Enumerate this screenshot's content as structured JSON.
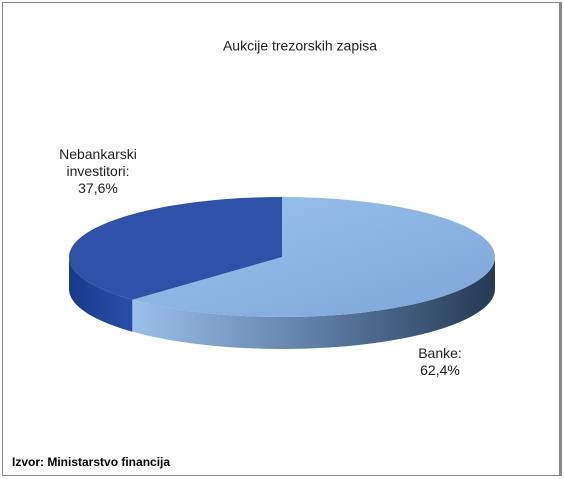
{
  "chart_data": {
    "type": "pie3d",
    "title": "Aukcije trezorskih zapisa",
    "categories": [
      "Banke:",
      "Nebankarski investitori:"
    ],
    "values": [
      62.4,
      37.6
    ],
    "value_labels": [
      "62,4%",
      "37,6%"
    ],
    "colors": [
      "#8fb6e3",
      "#2f52a8"
    ],
    "source": "Izvor: Ministarstvo financija"
  }
}
